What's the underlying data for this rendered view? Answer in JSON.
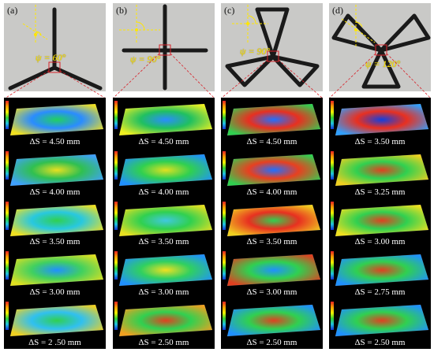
{
  "figure": {
    "panels": [
      {
        "label": "(a)",
        "psi": "ψ = 60°",
        "captions": [
          "ΔS = 4.50 mm",
          "ΔS = 4.00 mm",
          "ΔS = 3.50 mm",
          "ΔS = 3.00 mm",
          "ΔS = 2 .50 mm"
        ]
      },
      {
        "label": "(b)",
        "psi": "ψ = 90°",
        "captions": [
          "ΔS = 4.50 mm",
          "ΔS = 4.00 mm",
          "ΔS = 3.50 mm",
          "ΔS = 3.00 mm",
          "ΔS = 2.50 mm"
        ]
      },
      {
        "label": "(c)",
        "psi": "ψ = 90°",
        "captions": [
          "ΔS = 4.50 mm",
          "ΔS = 4.00 mm",
          "ΔS = 3.50 mm",
          "ΔS = 3.00 mm",
          "ΔS = 2.50 mm"
        ]
      },
      {
        "label": "(d)",
        "psi": "ψ = 120°",
        "captions": [
          "ΔS = 3.50 mm",
          "ΔS = 3.25 mm",
          "ΔS = 3.00 mm",
          "ΔS = 2.75 mm",
          "ΔS = 2.50 mm"
        ]
      }
    ],
    "colors": {
      "photo_background": "#c9c9c7",
      "specimen": "#1a1a1a",
      "angle_annotation": "#ffe600",
      "zoom_lines": "#d8222a",
      "map_background": "#000000",
      "caption_text": "#ffffff"
    }
  }
}
